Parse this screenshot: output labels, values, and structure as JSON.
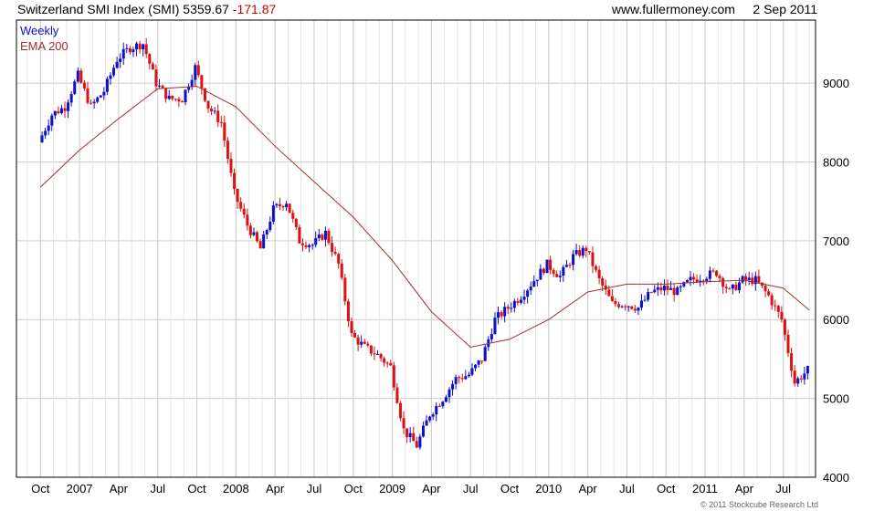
{
  "header": {
    "title": "Switzerland SMI Index (SMI)",
    "last": "5359.67",
    "change": "-171.87",
    "site": "www.fullermoney.com",
    "date": "2 Sep 2011"
  },
  "footer": {
    "copyright": "© 2011 Stockcube Research Ltd"
  },
  "colors": {
    "up": "#1010cc",
    "down": "#dd1111",
    "ema": "#993333",
    "grid": "#cccccc",
    "axis": "#000000"
  },
  "chart_data": {
    "type": "candlestick",
    "title": "Switzerland SMI Index (SMI)",
    "y_axis": {
      "side": "right",
      "ticks": [
        4000,
        5000,
        6000,
        7000,
        8000,
        9000
      ],
      "ylim": [
        4000,
        9800
      ]
    },
    "x_axis": {
      "ticks": [
        "Oct",
        "2007",
        "Apr",
        "Jul",
        "Oct",
        "2008",
        "Apr",
        "Jul",
        "Oct",
        "2009",
        "Apr",
        "Jul",
        "Oct",
        "2010",
        "Apr",
        "Jul",
        "Oct",
        "2011",
        "Apr",
        "Jul"
      ],
      "range": [
        "2006-09",
        "2011-09"
      ]
    },
    "grid": true,
    "legend": {
      "placement": "top-left",
      "entries": [
        "Weekly",
        "EMA 200"
      ]
    },
    "series": [
      {
        "name": "Weekly",
        "style": "candles",
        "x": [
          "Oct 2006",
          "Nov 2006",
          "Dec 2006",
          "Jan 2007",
          "Feb 2007",
          "Mar 2007",
          "Apr 2007",
          "May 2007",
          "Jun 2007",
          "Jul 2007",
          "Aug 2007",
          "Sep 2007",
          "Oct 2007",
          "Nov 2007",
          "Dec 2007",
          "Jan 2008",
          "Feb 2008",
          "Mar 2008",
          "Apr 2008",
          "May 2008",
          "Jun 2008",
          "Jul 2008",
          "Aug 2008",
          "Sep 2008",
          "Oct 2008",
          "Nov 2008",
          "Dec 2008",
          "Jan 2009",
          "Feb 2009",
          "Mar 2009",
          "Apr 2009",
          "May 2009",
          "Jun 2009",
          "Jul 2009",
          "Aug 2009",
          "Sep 2009",
          "Oct 2009",
          "Nov 2009",
          "Dec 2009",
          "Jan 2010",
          "Feb 2010",
          "Mar 2010",
          "Apr 2010",
          "May 2010",
          "Jun 2010",
          "Jul 2010",
          "Aug 2010",
          "Sep 2010",
          "Oct 2010",
          "Nov 2010",
          "Dec 2010",
          "Jan 2011",
          "Feb 2011",
          "Mar 2011",
          "Apr 2011",
          "May 2011",
          "Jun 2011",
          "Jul 2011",
          "Aug 2011",
          "Sep 2011"
        ],
        "close": [
          8250,
          8600,
          8700,
          9100,
          8700,
          8900,
          9300,
          9450,
          9500,
          9000,
          8800,
          8800,
          9200,
          8700,
          8500,
          7600,
          7200,
          6900,
          7400,
          7500,
          7000,
          6950,
          7100,
          6700,
          5800,
          5650,
          5550,
          5400,
          4600,
          4400,
          4800,
          5000,
          5250,
          5300,
          5500,
          6000,
          6150,
          6300,
          6500,
          6700,
          6550,
          6800,
          6900,
          6500,
          6200,
          6200,
          6150,
          6350,
          6400,
          6350,
          6500,
          6550,
          6600,
          6350,
          6500,
          6500,
          6300,
          6000,
          5200,
          5360
        ]
      },
      {
        "name": "EMA 200",
        "style": "line",
        "x": [
          "Oct 2006",
          "Jan 2007",
          "Apr 2007",
          "Jul 2007",
          "Oct 2007",
          "Jan 2008",
          "Apr 2008",
          "Jul 2008",
          "Oct 2008",
          "Jan 2009",
          "Apr 2009",
          "Jul 2009",
          "Oct 2009",
          "Jan 2010",
          "Apr 2010",
          "Jul 2010",
          "Oct 2010",
          "Jan 2011",
          "Apr 2011",
          "Jul 2011",
          "Sep 2011"
        ],
        "values": [
          7680,
          8150,
          8550,
          8930,
          8960,
          8700,
          8200,
          7750,
          7300,
          6750,
          6100,
          5650,
          5750,
          6000,
          6350,
          6450,
          6450,
          6480,
          6500,
          6400,
          6120
        ]
      }
    ]
  }
}
